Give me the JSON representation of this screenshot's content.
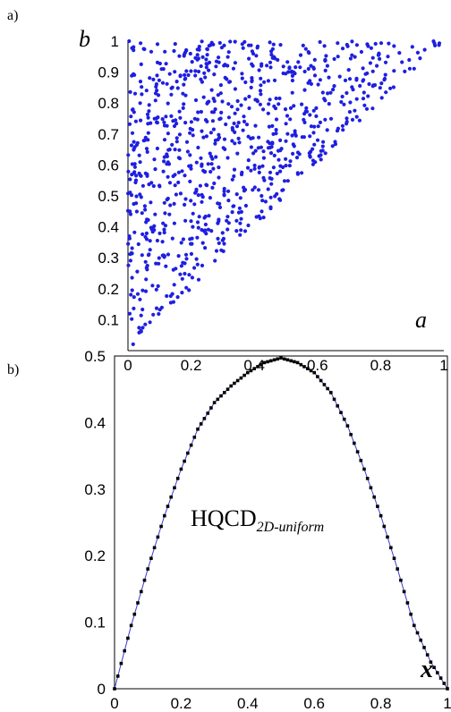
{
  "chart_data": [
    {
      "type": "scatter",
      "panel_label": "a)",
      "xlabel": "a",
      "ylabel": "b",
      "xlim": [
        0,
        1
      ],
      "ylim": [
        0,
        1
      ],
      "x_ticks": [
        "0",
        "0.2",
        "0.4",
        "0.6",
        "0.8",
        "1"
      ],
      "y_ticks": [
        "0.1",
        "0.2",
        "0.3",
        "0.4",
        "0.5",
        "0.6",
        "0.7",
        "0.8",
        "0.9",
        "1"
      ],
      "grid": false,
      "marker_color": "#1f1fe0",
      "point_count": 900,
      "region": "points uniformly distributed over the triangle 0 <= a <= b <= 1"
    },
    {
      "type": "line",
      "panel_label": "b)",
      "xlabel": "x",
      "annotation_main": "HQCD",
      "annotation_sub": "2D-uniform",
      "xlim": [
        0,
        1
      ],
      "ylim": [
        0,
        0.5
      ],
      "x_ticks": [
        "0",
        "0.2",
        "0.4",
        "0.6",
        "0.8",
        "1"
      ],
      "y_ticks": [
        "0",
        "0.1",
        "0.2",
        "0.3",
        "0.4",
        "0.5"
      ],
      "grid": false,
      "line_color": "#3a3ad0",
      "marker_color": "#000000",
      "x": [
        0,
        0.05,
        0.1,
        0.15,
        0.2,
        0.25,
        0.3,
        0.35,
        0.4,
        0.45,
        0.5,
        0.55,
        0.6,
        0.65,
        0.7,
        0.75,
        0.8,
        0.85,
        0.9,
        0.95,
        1.0
      ],
      "y": [
        0.0,
        0.095,
        0.18,
        0.26,
        0.33,
        0.39,
        0.43,
        0.455,
        0.475,
        0.49,
        0.497,
        0.49,
        0.475,
        0.445,
        0.395,
        0.33,
        0.26,
        0.18,
        0.095,
        0.04,
        0.0
      ]
    }
  ]
}
